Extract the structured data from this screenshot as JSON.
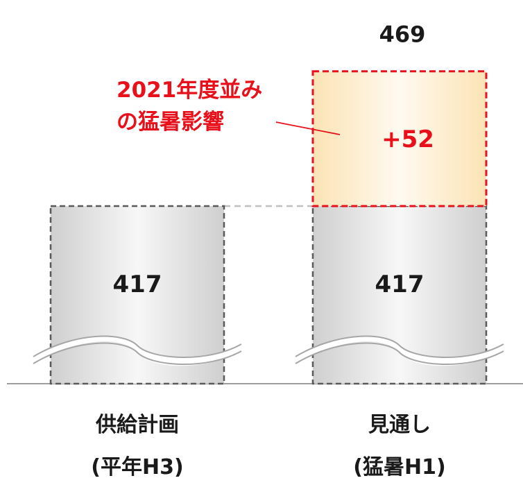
{
  "chart_data": {
    "type": "bar",
    "stacked": true,
    "axis_break": true,
    "categories": [
      {
        "line1": "供給計画",
        "line2": "(平年H3)"
      },
      {
        "line1": "見通し",
        "line2": "(猛暑H1)"
      }
    ],
    "series": [
      {
        "values": [
          417,
          417
        ],
        "labels": [
          "417",
          "417"
        ]
      },
      {
        "values": [
          0,
          52
        ],
        "labels": [
          "",
          "+52"
        ]
      }
    ],
    "totals": [
      "",
      "469"
    ],
    "annotation": {
      "lines": [
        "2021年度並み",
        "の猛暑影響"
      ],
      "target_category": 1
    },
    "ylim": [
      380,
      470
    ],
    "colors": {
      "base_fill": "#d9d9d9",
      "base_stroke": "#595959",
      "increment_fill": "#fbe7c0",
      "increment_stroke": "#e8101a",
      "text": "#1a1a1a",
      "accent": "#e8101a",
      "axis": "#7f7f7f"
    }
  }
}
